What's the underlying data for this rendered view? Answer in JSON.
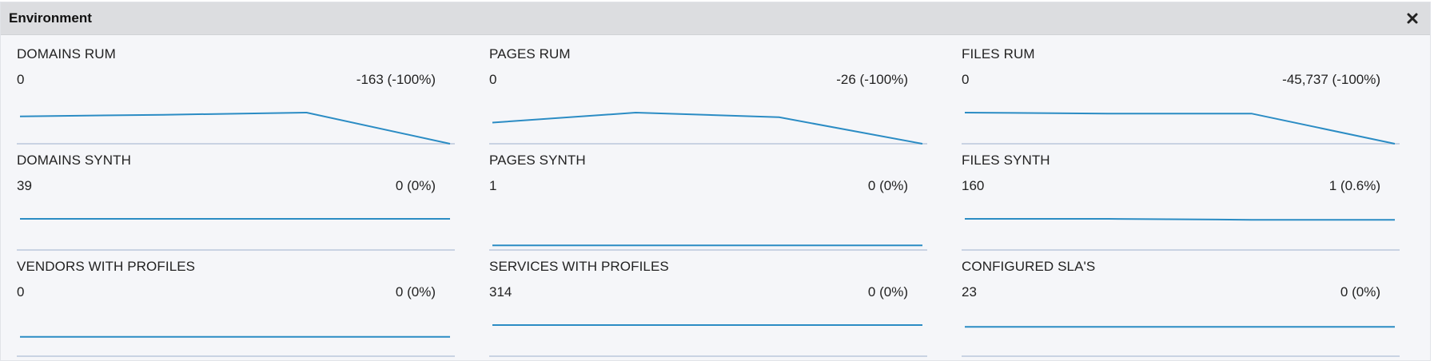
{
  "panel": {
    "title": "Environment",
    "close_icon": "close-icon"
  },
  "colors": {
    "line": "#2b8cc4",
    "baseline": "#c9d3e3",
    "header_bg": "#dcdde0",
    "panel_bg": "#f5f6f9"
  },
  "cards": [
    {
      "title": "DOMAINS RUM",
      "value": "0",
      "change": "-163 (-100%)",
      "trend": [
        0.88,
        0.93,
        1.0,
        0.0
      ]
    },
    {
      "title": "PAGES RUM",
      "value": "0",
      "change": "-26 (-100%)",
      "trend": [
        0.68,
        1.0,
        0.85,
        0.0
      ]
    },
    {
      "title": "FILES RUM",
      "value": "0",
      "change": "-45,737 (-100%)",
      "trend": [
        1.0,
        0.97,
        0.97,
        0.0
      ]
    },
    {
      "title": "DOMAINS SYNTH",
      "value": "39",
      "change": "0 (0%)",
      "trend": [
        1.0,
        1.0,
        1.0,
        1.0
      ]
    },
    {
      "title": "PAGES SYNTH",
      "value": "1",
      "change": "0 (0%)",
      "trend": [
        0.15,
        0.15,
        0.15,
        0.15
      ]
    },
    {
      "title": "FILES SYNTH",
      "value": "160",
      "change": "1 (0.6%)",
      "trend": [
        1.0,
        1.0,
        0.97,
        0.97
      ]
    },
    {
      "title": "VENDORS WITH PROFILES",
      "value": "0",
      "change": "0 (0%)",
      "trend": [
        0.62,
        0.62,
        0.62,
        0.62
      ]
    },
    {
      "title": "SERVICES WITH PROFILES",
      "value": "314",
      "change": "0 (0%)",
      "trend": [
        1.0,
        1.0,
        1.0,
        1.0
      ]
    },
    {
      "title": "CONFIGURED SLA'S",
      "value": "23",
      "change": "0 (0%)",
      "trend": [
        0.94,
        0.94,
        0.94,
        0.94
      ]
    }
  ]
}
